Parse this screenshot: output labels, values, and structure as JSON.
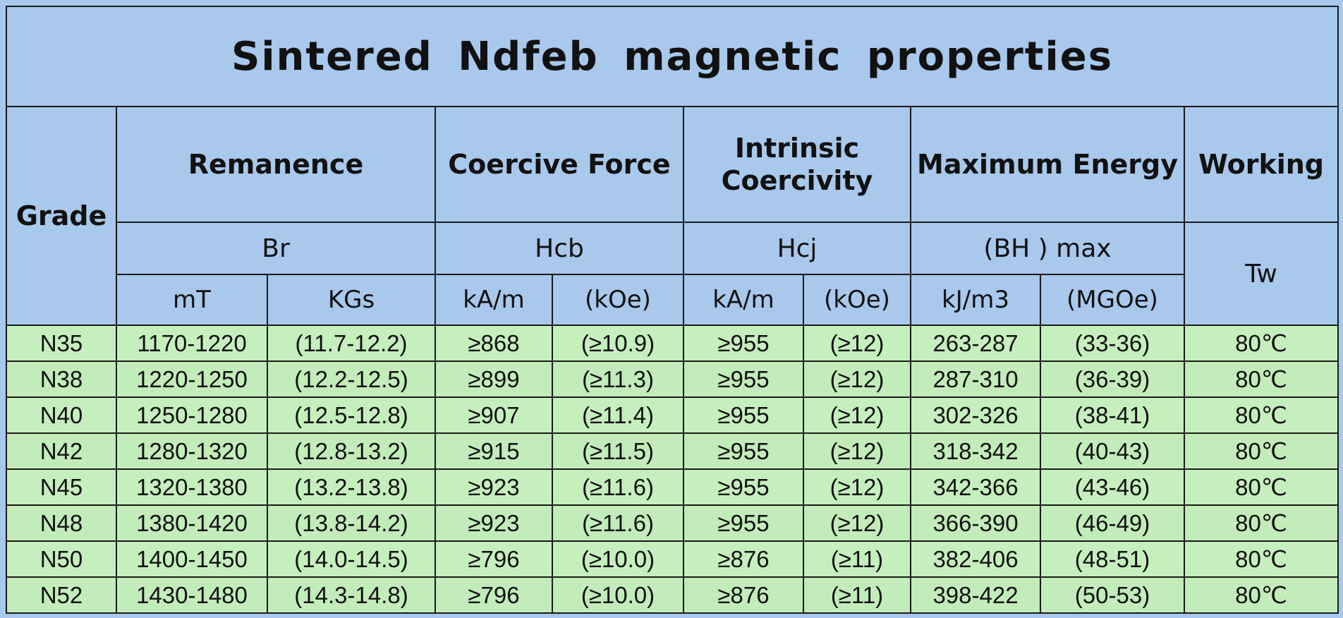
{
  "title": "Sintered Ndfeb magnetic properties",
  "headers": {
    "grade": "Grade",
    "remanence": "Remanence",
    "coercive_force": "Coercive Force",
    "intrinsic_coercivity": "Intrinsic Coercivity",
    "maximum_energy": "Maximum Energy",
    "working": "Working",
    "br": "Br",
    "hcb": "Hcb",
    "hcj": "Hcj",
    "bhmax": "(BH ) max",
    "tw": "Tw",
    "units": [
      "mT",
      "KGs",
      "kA/m",
      "(kOe)",
      "kA/m",
      "(kOe)",
      "kJ/m3",
      "(MGOe)"
    ]
  },
  "rows": [
    [
      "N35",
      "1170-1220",
      "(11.7-12.2)",
      "≥868",
      "(≥10.9)",
      "≥955",
      "(≥12)",
      "263-287",
      "(33-36)",
      "80℃"
    ],
    [
      "N38",
      "1220-1250",
      "(12.2-12.5)",
      "≥899",
      "(≥11.3)",
      "≥955",
      "(≥12)",
      "287-310",
      "(36-39)",
      "80℃"
    ],
    [
      "N40",
      "1250-1280",
      "(12.5-12.8)",
      "≥907",
      "(≥11.4)",
      "≥955",
      "(≥12)",
      "302-326",
      "(38-41)",
      "80℃"
    ],
    [
      "N42",
      "1280-1320",
      "(12.8-13.2)",
      "≥915",
      "(≥11.5)",
      "≥955",
      "(≥12)",
      "318-342",
      "(40-43)",
      "80℃"
    ],
    [
      "N45",
      "1320-1380",
      "(13.2-13.8)",
      "≥923",
      "(≥11.6)",
      "≥955",
      "(≥12)",
      "342-366",
      "(43-46)",
      "80℃"
    ],
    [
      "N48",
      "1380-1420",
      "(13.8-14.2)",
      "≥923",
      "(≥11.6)",
      "≥955",
      "(≥12)",
      "366-390",
      "(46-49)",
      "80℃"
    ],
    [
      "N50",
      "1400-1450",
      "(14.0-14.5)",
      "≥796",
      "(≥10.0)",
      "≥876",
      "(≥11)",
      "382-406",
      "(48-51)",
      "80℃"
    ],
    [
      "N52",
      "1430-1480",
      "(14.3-14.8)",
      "≥796",
      "(≥10.0)",
      "≥876",
      "(≥11)",
      "398-422",
      "(50-53)",
      "80℃"
    ]
  ]
}
